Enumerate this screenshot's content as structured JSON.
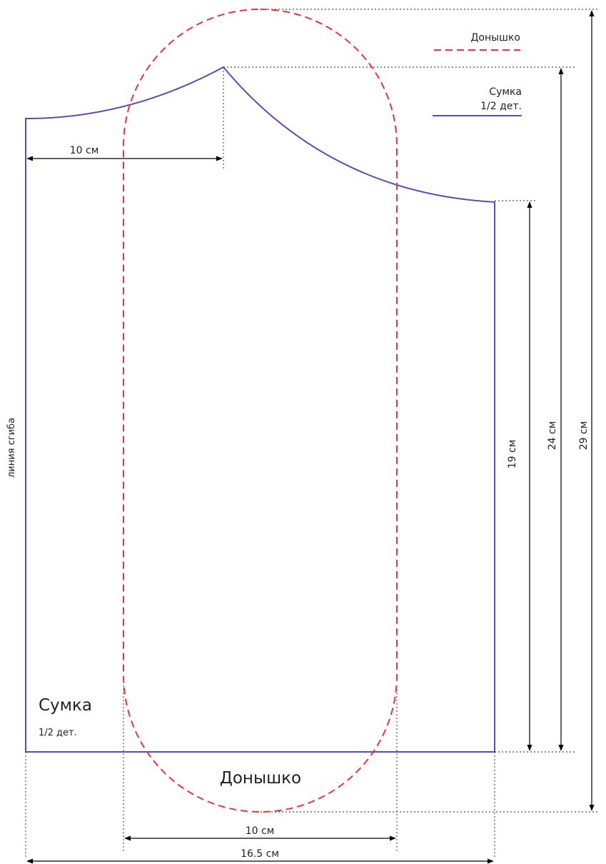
{
  "legend": {
    "bottom_label": "Донышко",
    "bag_label": "Сумка",
    "bag_sub_label": "1/2 дет."
  },
  "pieces": {
    "bag_title": "Сумка",
    "bag_subtitle": "1/2 дет.",
    "bottom_title": "Донышко",
    "fold_line": "линия сгиба"
  },
  "dimensions": {
    "top_width": "10 см",
    "side_height": "19 см",
    "peak_height": "24 см",
    "total_height": "29 см",
    "bottom_width": "10 см",
    "total_width": "16.5 см"
  },
  "colors": {
    "bag_outline": "#5b4ab3",
    "bottom_outline": "#e8333a",
    "dimension_lines": "#000000",
    "text": "#231f20"
  }
}
